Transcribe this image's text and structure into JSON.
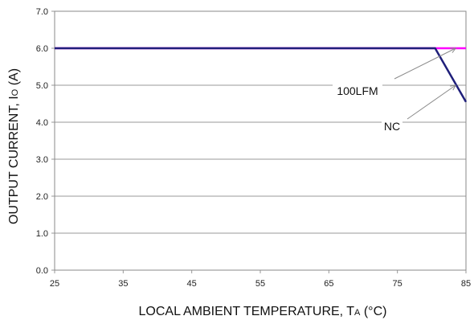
{
  "chart_data": {
    "type": "line",
    "title": "",
    "xlabel_main": "LOCAL AMBIENT TEMPERATURE, T",
    "xlabel_sub": "A",
    "xlabel_unit": " (°C)",
    "ylabel_main": "OUTPUT CURRENT, I",
    "ylabel_sub": "O",
    "ylabel_unit": " (A)",
    "xlim": [
      25,
      85
    ],
    "ylim": [
      0,
      7
    ],
    "xticks": [
      25,
      35,
      45,
      55,
      65,
      75,
      85
    ],
    "yticks": [
      "0.0",
      "1.0",
      "2.0",
      "3.0",
      "4.0",
      "5.0",
      "6.0",
      "7.0"
    ],
    "grid": true,
    "series": [
      {
        "name": "100LFM",
        "color": "#ff00ff",
        "x": [
          25,
          85
        ],
        "y": [
          6.0,
          6.0
        ]
      },
      {
        "name": "NC",
        "color": "#1f1f7a",
        "x": [
          25,
          80.5,
          85
        ],
        "y": [
          6.0,
          6.0,
          4.55
        ]
      }
    ],
    "annotations": [
      {
        "text": "100LFM",
        "series": "100LFM",
        "point": [
          83.5,
          6.0
        ]
      },
      {
        "text": "NC",
        "series": "NC",
        "point": [
          83.5,
          5.0
        ]
      }
    ]
  }
}
